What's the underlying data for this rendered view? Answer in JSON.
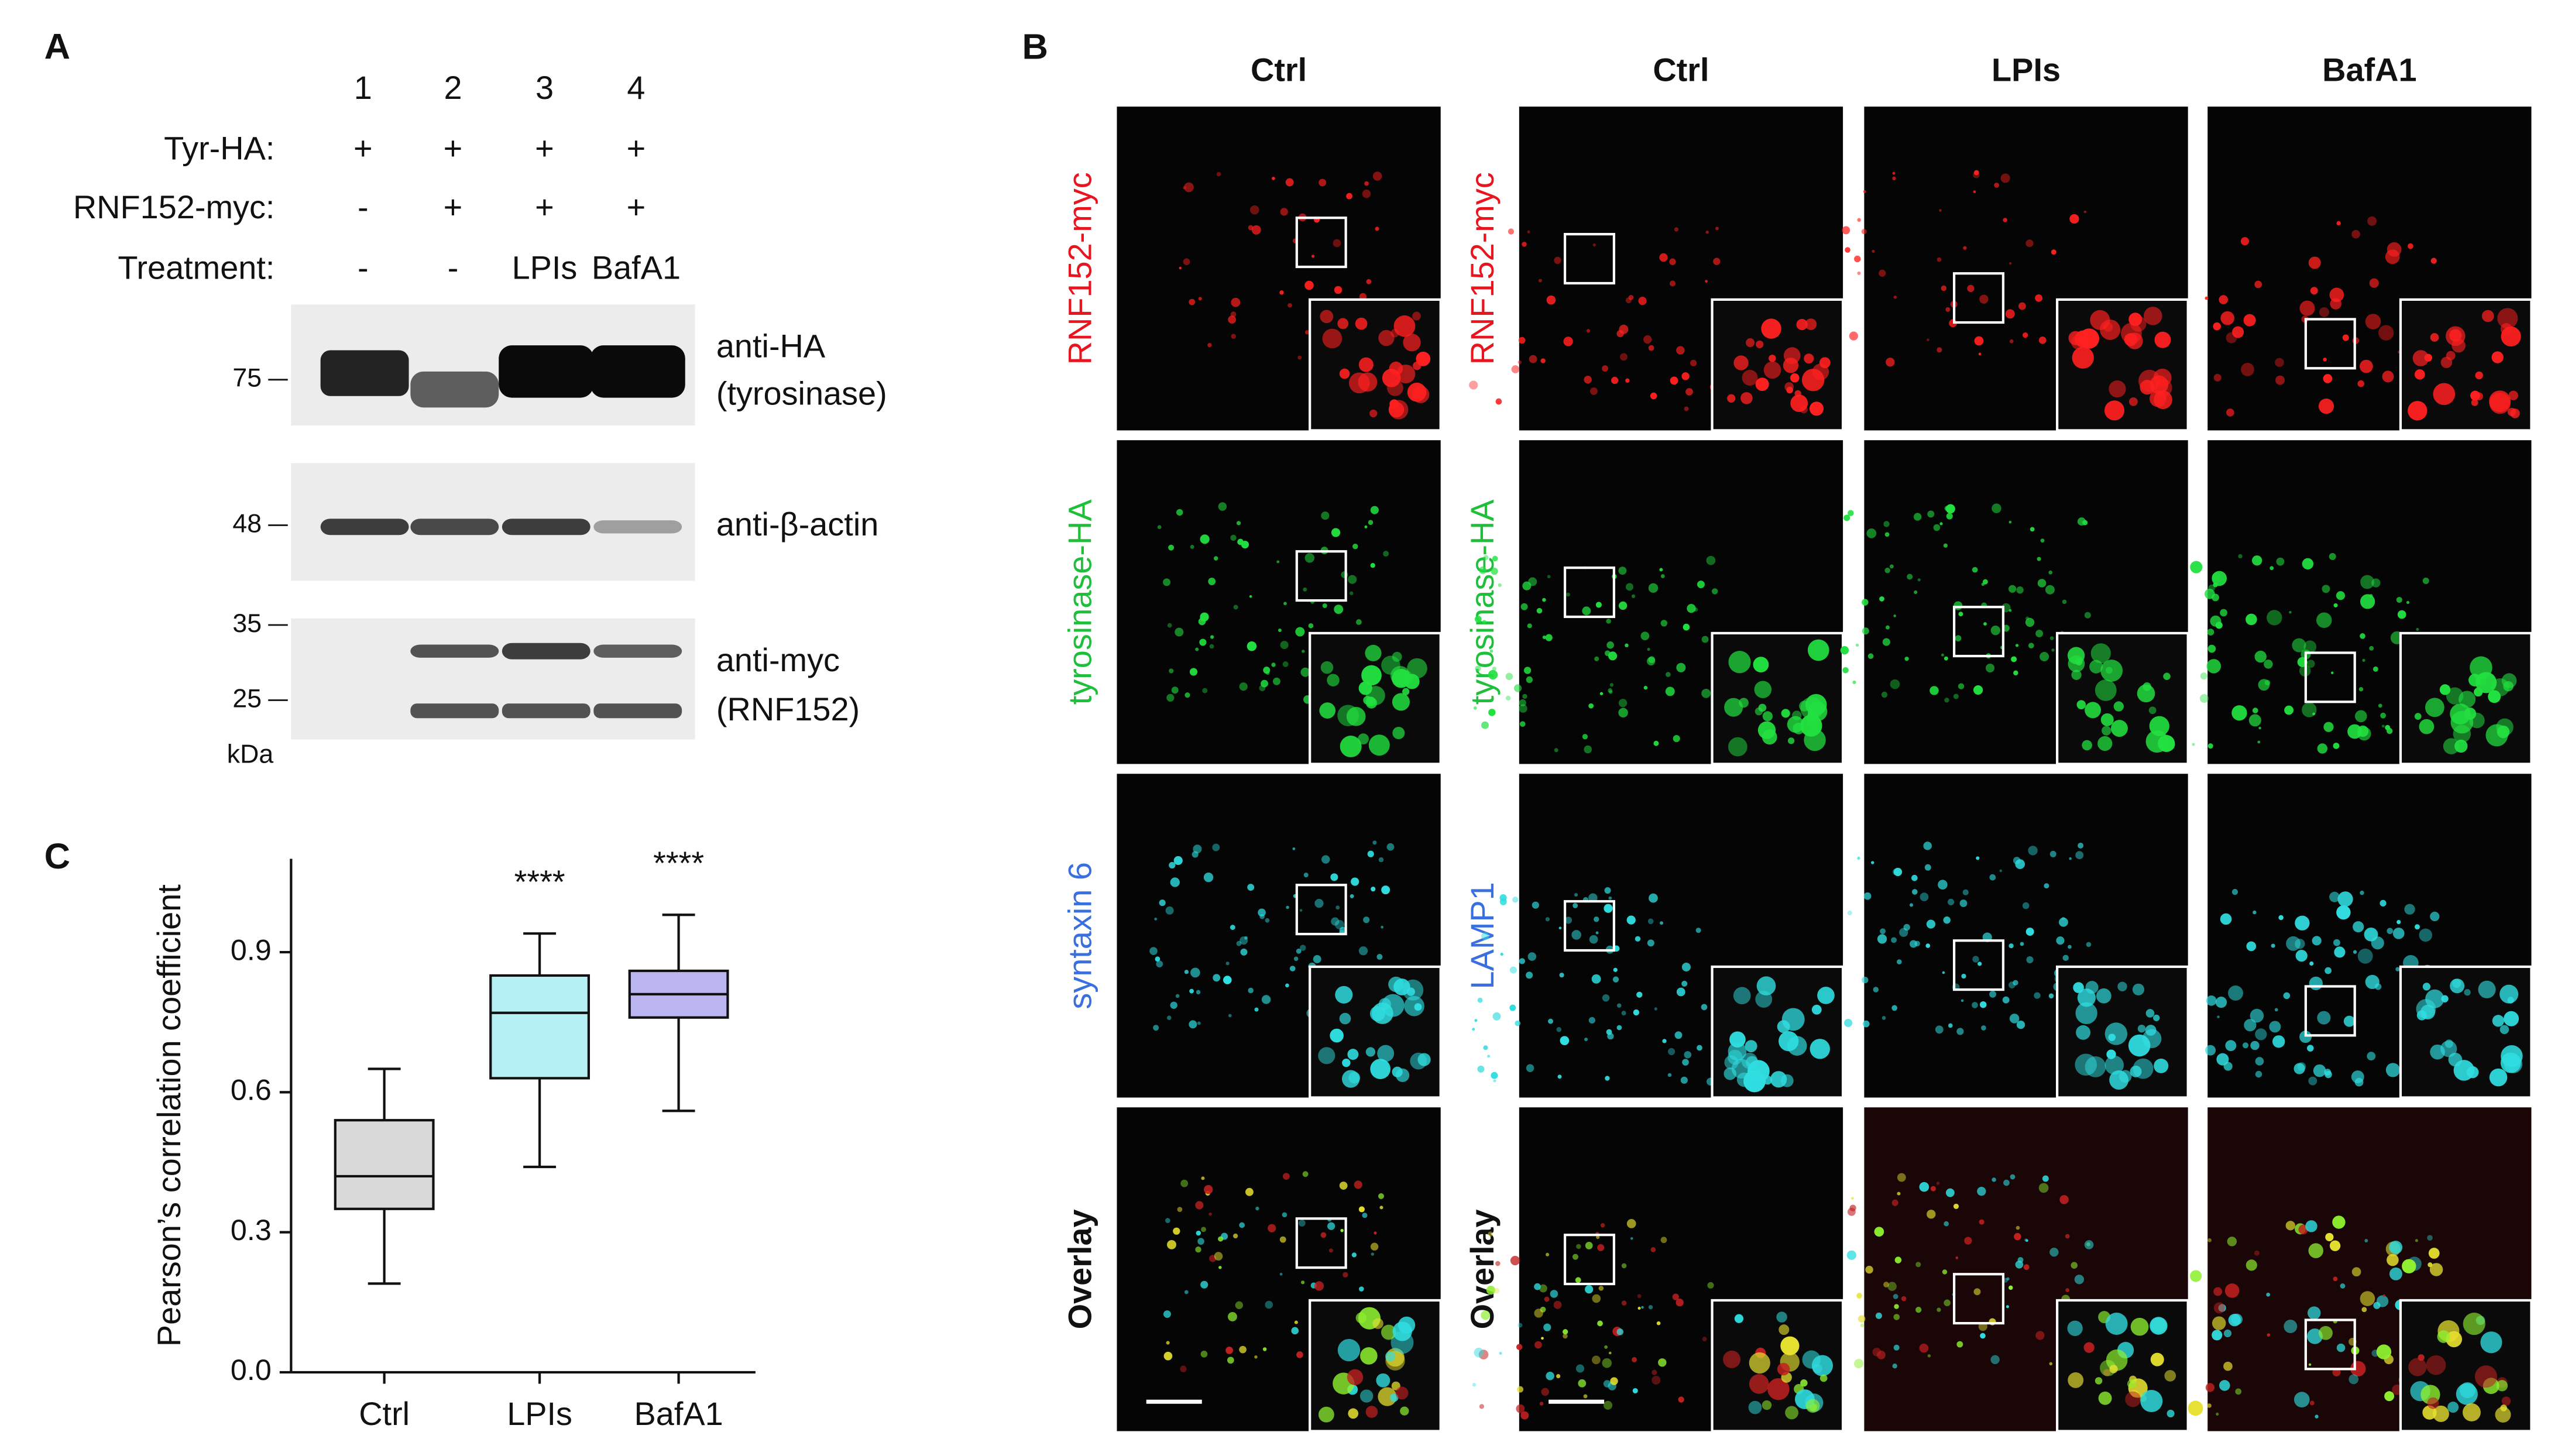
{
  "panel_a": {
    "label": "A",
    "lanes": [
      "1",
      "2",
      "3",
      "4"
    ],
    "rows": [
      {
        "name": "Tyr-HA:",
        "cells": [
          "+",
          "+",
          "+",
          "+"
        ]
      },
      {
        "name": "RNF152-myc:",
        "cells": [
          "-",
          "+",
          "+",
          "+"
        ]
      },
      {
        "name": "Treatment:",
        "cells": [
          "-",
          "-",
          "LPIs",
          "BafA1"
        ]
      }
    ],
    "blots": [
      {
        "label": [
          "anti-HA",
          "(tyrosinase)"
        ],
        "markers": [
          "75"
        ]
      },
      {
        "label": [
          "anti-β-actin"
        ],
        "markers": [
          "48"
        ]
      },
      {
        "label": [
          "anti-myc",
          "(RNF152)"
        ],
        "markers": [
          "35",
          "25"
        ]
      }
    ],
    "unit": "kDa"
  },
  "panel_b": {
    "label": "B",
    "columns": [
      "Ctrl",
      "Ctrl",
      "LPIs",
      "BafA1"
    ],
    "row_labels_left": [
      "RNF152-myc",
      "tyrosinase-HA",
      "syntaxin 6",
      "Overlay"
    ],
    "row_labels_right": [
      "RNF152-myc",
      "tyrosinase-HA",
      "LAMP1",
      "Overlay"
    ]
  },
  "chart_data": {
    "type": "box",
    "panel_label": "C",
    "y_label": "Pearson’s correlation coefficient",
    "categories": [
      "Ctrl",
      "LPIs",
      "BafA1"
    ],
    "min": [
      0.19,
      0.44,
      0.56
    ],
    "q1": [
      0.35,
      0.63,
      0.76
    ],
    "median": [
      0.42,
      0.77,
      0.81
    ],
    "q3": [
      0.54,
      0.85,
      0.86
    ],
    "max": [
      0.65,
      0.94,
      0.98
    ],
    "colors": [
      "#d9d9d9",
      "#b5f0f5",
      "#bab5f0"
    ],
    "annotations": [
      null,
      "****",
      "****"
    ],
    "ylim": [
      0,
      1.1
    ],
    "yticks": [
      {
        "value": 0,
        "label": "0.0"
      },
      0.3,
      0.6,
      0.9
    ]
  }
}
